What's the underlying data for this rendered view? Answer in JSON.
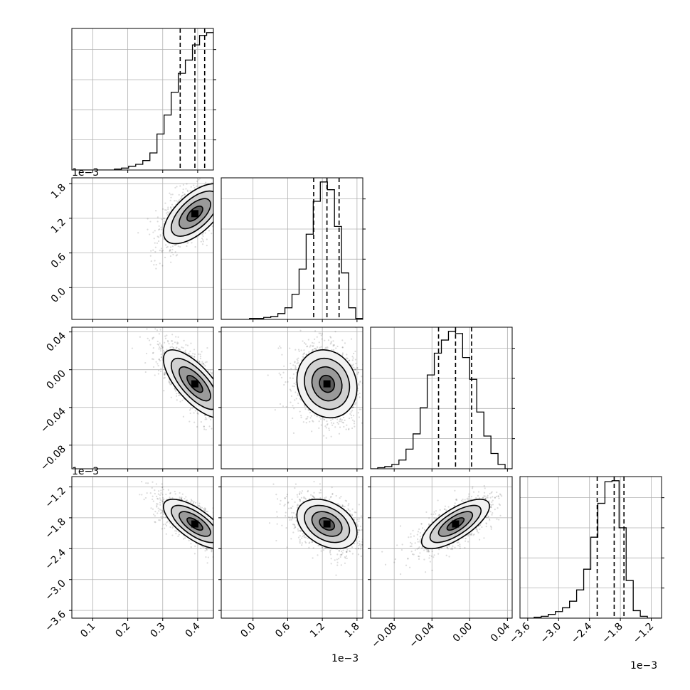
{
  "chart_data": {
    "type": "corner",
    "title": "",
    "n_params": 4,
    "parameters": [
      {
        "label": "",
        "range": [
          0.04,
          0.445
        ],
        "ticks": [
          0.1,
          0.2,
          0.3,
          0.4
        ],
        "tick_labels": [
          "0.1",
          "0.2",
          "0.3",
          "0.4"
        ],
        "offset_label": "",
        "quantiles": [
          0.35,
          0.392,
          0.42
        ]
      },
      {
        "label": "",
        "range": [
          -0.55,
          1.9
        ],
        "ticks": [
          0.0,
          0.6,
          1.2,
          1.8
        ],
        "tick_labels": [
          "0.0",
          "0.6",
          "1.2",
          "1.8"
        ],
        "offset_label": "1e−3",
        "quantiles": [
          1.05,
          1.28,
          1.49
        ]
      },
      {
        "label": "",
        "range": [
          -0.105,
          0.045
        ],
        "ticks": [
          -0.08,
          -0.04,
          0.0,
          0.04
        ],
        "tick_labels": [
          "−0.08",
          "−0.04",
          "0.00",
          "0.04"
        ],
        "offset_label": "",
        "quantiles": [
          -0.033,
          -0.015,
          0.002
        ]
      },
      {
        "label": "",
        "range": [
          -3.75,
          -1.0
        ],
        "ticks": [
          -3.6,
          -3.0,
          -2.4,
          -1.8,
          -1.2
        ],
        "tick_labels": [
          "−3.6",
          "−3.0",
          "−2.4",
          "−1.8",
          "−1.2"
        ],
        "offset_label": "1e−3",
        "quantiles": [
          -2.25,
          -1.92,
          -1.73
        ]
      }
    ],
    "histograms": [
      {
        "param": 0,
        "bin_start": 0.04,
        "bin_width": 0.0203,
        "counts": [
          0,
          0,
          0,
          0,
          0,
          0,
          1,
          2,
          4,
          6,
          10,
          18,
          38,
          58,
          82,
          102,
          116,
          132,
          142,
          145
        ]
      },
      {
        "param": 1,
        "bin_start": -0.55,
        "bin_width": 0.1225,
        "counts": [
          0,
          0,
          0,
          0,
          1,
          1,
          2,
          3,
          6,
          12,
          26,
          52,
          88,
          122,
          142,
          134,
          96,
          48,
          12,
          1
        ]
      },
      {
        "param": 2,
        "bin_start": -0.105,
        "bin_width": 0.0075,
        "counts": [
          0,
          1,
          2,
          4,
          8,
          18,
          32,
          56,
          86,
          106,
          118,
          126,
          124,
          102,
          82,
          52,
          30,
          14,
          4,
          0
        ]
      },
      {
        "param": 3,
        "bin_start": -3.75,
        "bin_width": 0.1375,
        "counts": [
          0,
          0,
          1,
          2,
          4,
          7,
          11,
          18,
          30,
          52,
          86,
          122,
          145,
          146,
          96,
          40,
          8,
          2,
          0,
          0
        ]
      }
    ],
    "pairs": [
      {
        "x": 0,
        "y": 1,
        "mean": [
          0.392,
          1.28
        ],
        "std": [
          0.045,
          0.26
        ],
        "corr": 0.62
      },
      {
        "x": 0,
        "y": 2,
        "mean": [
          0.392,
          -0.015
        ],
        "std": [
          0.045,
          0.018
        ],
        "corr": -0.72
      },
      {
        "x": 1,
        "y": 2,
        "mean": [
          1.28,
          -0.015
        ],
        "std": [
          0.26,
          0.018
        ],
        "corr": -0.12
      },
      {
        "x": 0,
        "y": 3,
        "mean": [
          0.392,
          -1.92
        ],
        "std": [
          0.045,
          0.24
        ],
        "corr": -0.7
      },
      {
        "x": 1,
        "y": 3,
        "mean": [
          1.28,
          -1.92
        ],
        "std": [
          0.26,
          0.24
        ],
        "corr": -0.35
      },
      {
        "x": 2,
        "y": 3,
        "mean": [
          -0.015,
          -1.92
        ],
        "std": [
          0.018,
          0.24
        ],
        "corr": 0.72
      }
    ],
    "contour_levels_sigma": [
      0.5,
      1.0,
      1.5,
      2.0
    ],
    "grid": true,
    "legend": "none"
  }
}
